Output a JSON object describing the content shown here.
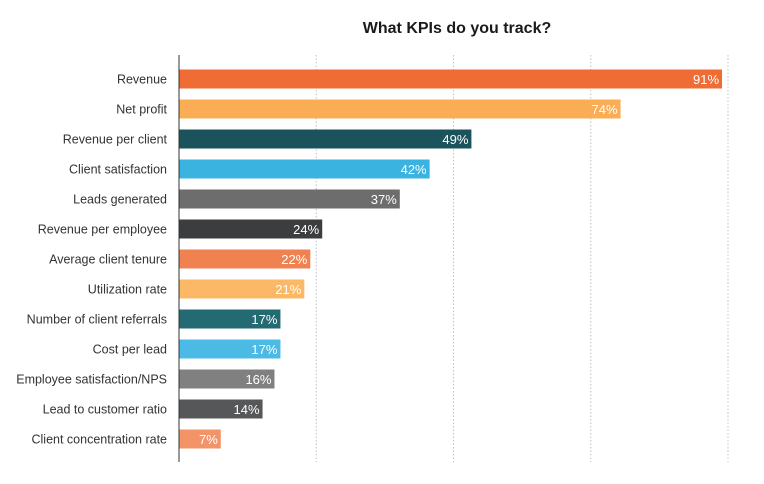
{
  "chart_data": {
    "type": "bar",
    "orientation": "horizontal",
    "title": "What KPIs do you track?",
    "xlabel": "",
    "ylabel": "",
    "xlim": [
      0,
      92
    ],
    "grid": "vertical dotted",
    "categories": [
      "Revenue",
      "Net profit",
      "Revenue per client",
      "Client satisfaction",
      "Leads generated",
      "Revenue per employee",
      "Average client tenure",
      "Utilization rate",
      "Number of client referrals",
      "Cost per lead",
      "Employee satisfaction/NPS",
      "Lead to customer ratio",
      "Client concentration rate"
    ],
    "values": [
      91,
      74,
      49,
      42,
      37,
      24,
      22,
      21,
      17,
      17,
      16,
      14,
      7
    ],
    "value_labels": [
      "91%",
      "74%",
      "49%",
      "42%",
      "37%",
      "24%",
      "22%",
      "21%",
      "17%",
      "17%",
      "16%",
      "14%",
      "7%"
    ],
    "colors": [
      "#ef6c35",
      "#fbad55",
      "#1a535c",
      "#3ab3e0",
      "#6d6d6d",
      "#3b3d3e",
      "#f08150",
      "#fbb866",
      "#246a72",
      "#4bbbe6",
      "#808080",
      "#555758",
      "#f39468"
    ]
  }
}
